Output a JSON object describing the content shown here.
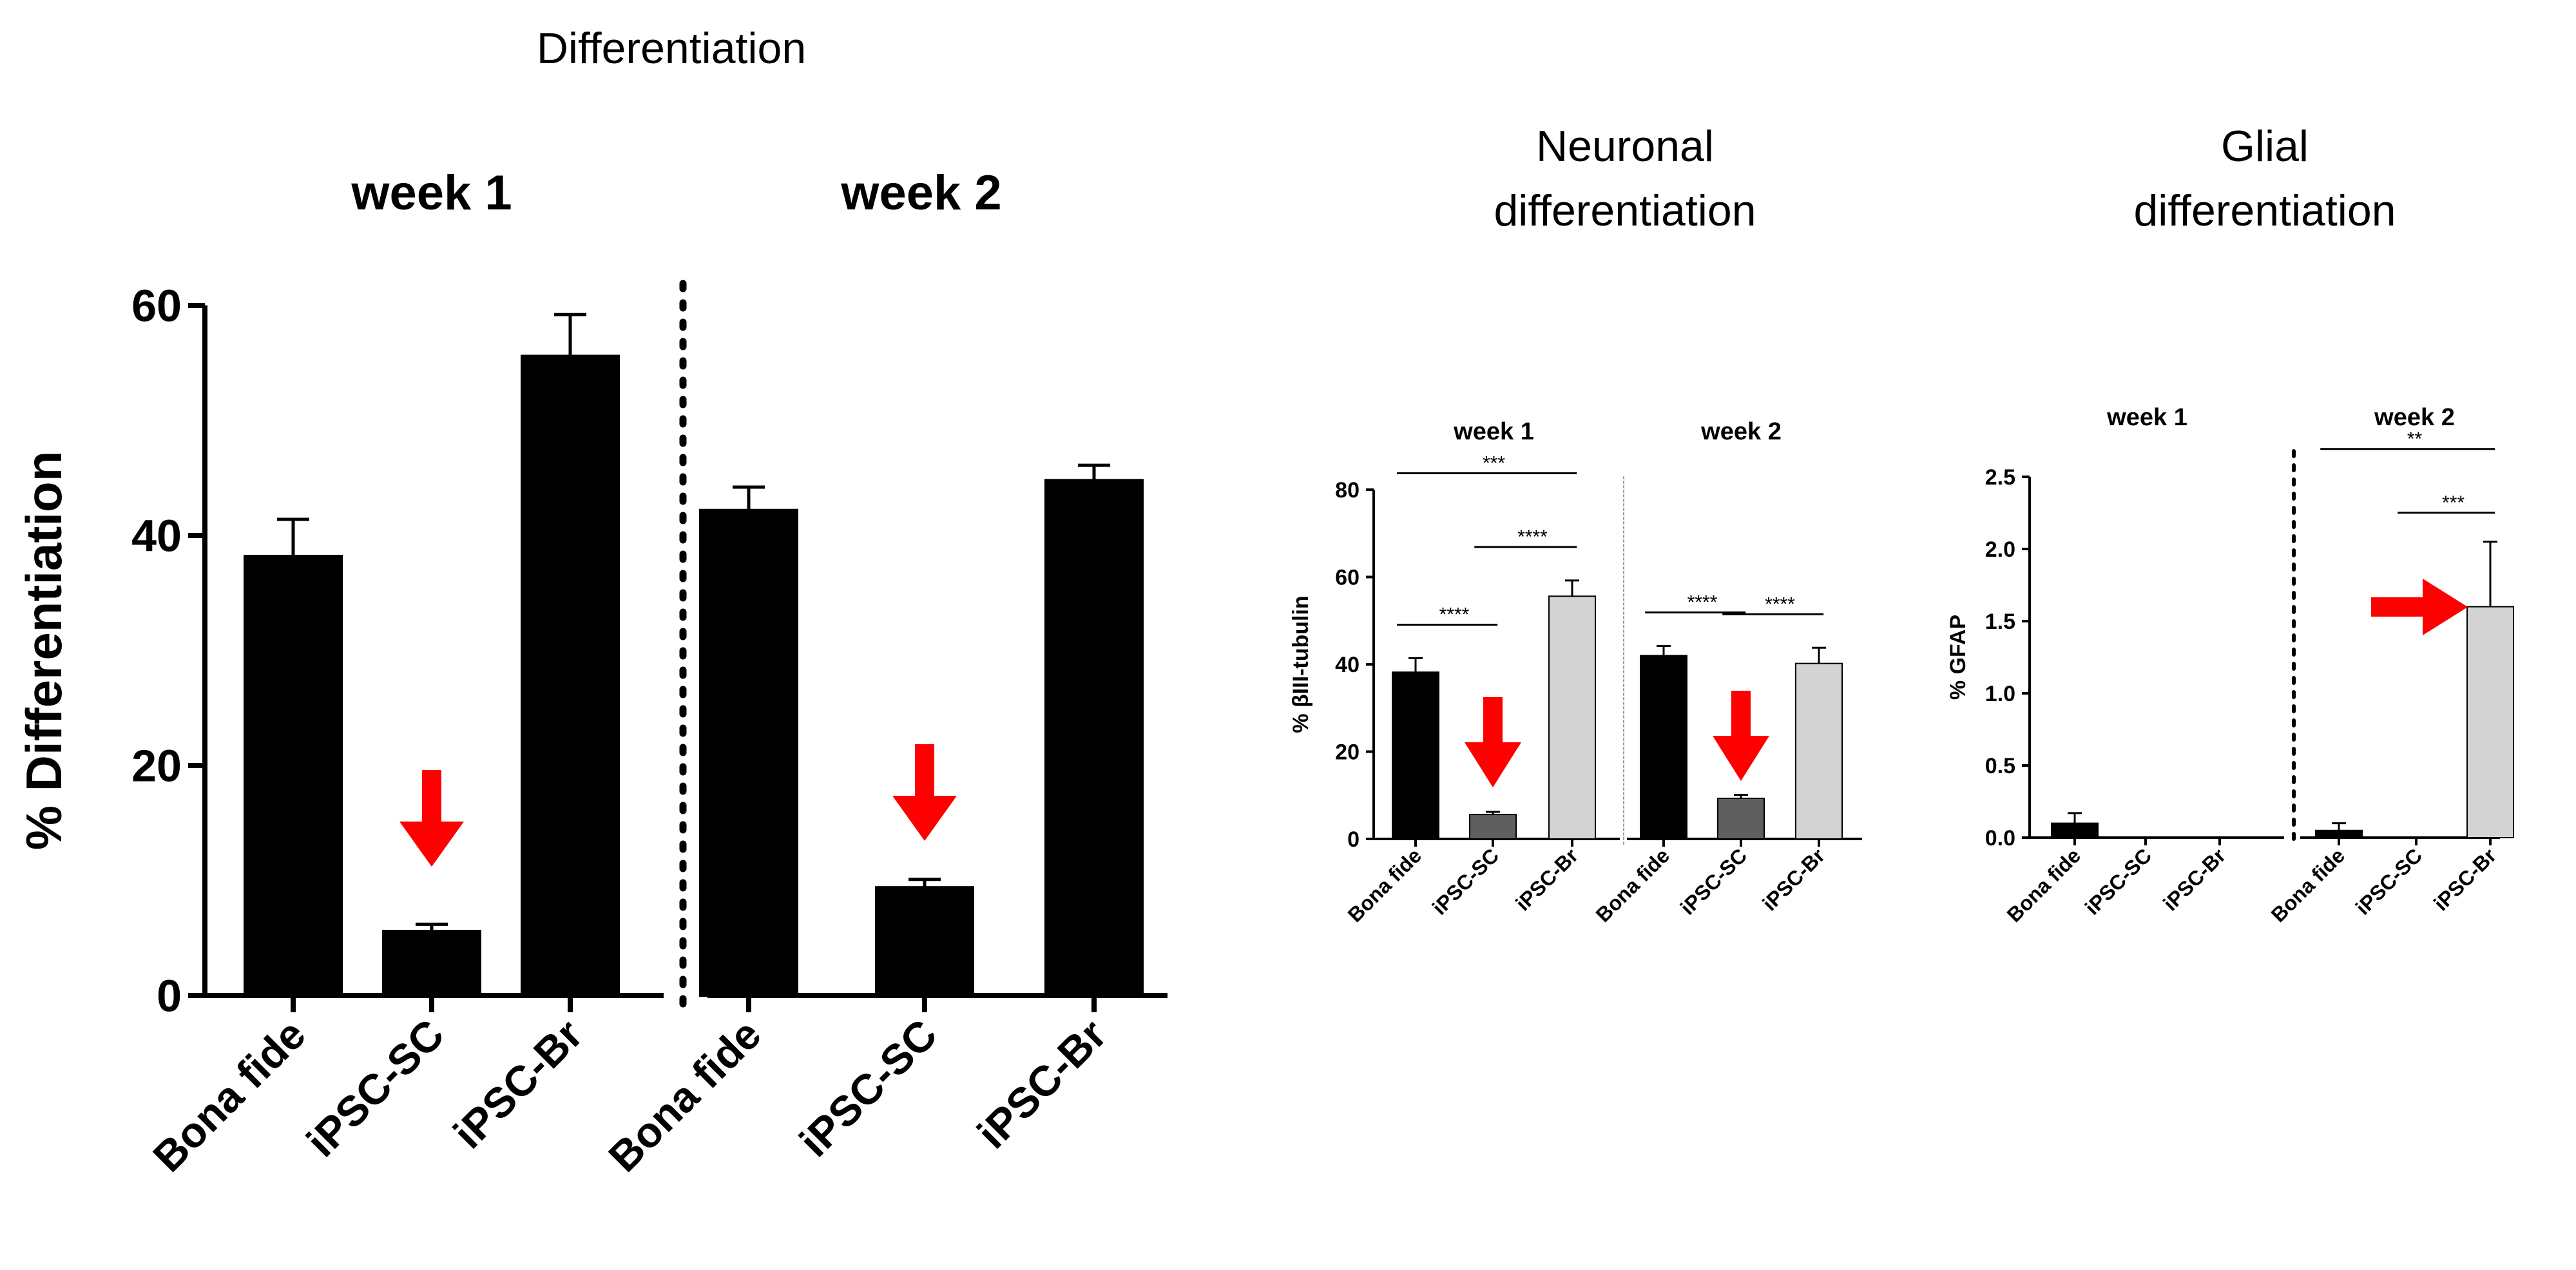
{
  "captions": {
    "main": "Differentiation",
    "neuronal_line1": "Neuronal",
    "neuronal_line2": "differentiation",
    "glial_line1": "Glial",
    "glial_line2": "differentiation"
  },
  "colors": {
    "black": "#000000",
    "dark_gray": "#5f5f5f",
    "light_gray": "#d3d3d3",
    "arrow_red": "#ff0000"
  },
  "chart_data": [
    {
      "type": "bar",
      "ylabel": "% Differentiation",
      "ylim": [
        0,
        60
      ],
      "yticks": [
        0,
        20,
        40,
        60
      ],
      "panels": [
        {
          "title": "week 1",
          "categories": [
            "Bona fide",
            "iPSC-SC",
            "iPSC-Br"
          ],
          "values": [
            38.2,
            5.6,
            55.6
          ],
          "errors": [
            3.2,
            0.6,
            3.6
          ]
        },
        {
          "title": "week 2",
          "categories": [
            "Bona fide",
            "iPSC-SC",
            "iPSC-Br"
          ],
          "values": [
            42.2,
            9.4,
            44.8
          ],
          "errors": [
            2.0,
            0.7,
            1.3
          ]
        }
      ],
      "annotations": [
        "red arrow pointing down at iPSC-SC week 1",
        "red arrow pointing down at iPSC-SC week 2"
      ]
    },
    {
      "type": "bar",
      "ylabel": "% βIII-tubulin",
      "ylim": [
        0,
        80
      ],
      "yticks": [
        0,
        20,
        40,
        60,
        80
      ],
      "panels": [
        {
          "title": "week 1",
          "categories": [
            "Bona fide",
            "iPSC-SC",
            "iPSC-Br"
          ],
          "values": [
            38.2,
            5.6,
            55.6
          ],
          "errors": [
            3.2,
            0.6,
            3.6
          ],
          "significance": [
            {
              "from": 0,
              "to": 1,
              "label": "****"
            },
            {
              "from": 1,
              "to": 2,
              "label": "****"
            },
            {
              "from": 0,
              "to": 2,
              "label": "***"
            }
          ]
        },
        {
          "title": "week 2",
          "categories": [
            "Bona fide",
            "iPSC-SC",
            "iPSC-Br"
          ],
          "values": [
            42.0,
            9.3,
            40.2
          ],
          "errors": [
            2.2,
            0.8,
            3.6
          ],
          "significance": [
            {
              "from": 0,
              "to": 1,
              "label": "****"
            },
            {
              "from": 1,
              "to": 2,
              "label": "****"
            }
          ]
        }
      ],
      "bar_colors": [
        "black",
        "dark_gray",
        "light_gray"
      ],
      "annotations": [
        "red arrow pointing down at iPSC-SC week 1",
        "red arrow pointing down at iPSC-SC week 2"
      ]
    },
    {
      "type": "bar",
      "ylabel": "% GFAP",
      "ylim": [
        0,
        2.5
      ],
      "yticks": [
        "0.0",
        "0.5",
        "1.0",
        "1.5",
        "2.0",
        "2.5"
      ],
      "panels": [
        {
          "title": "week 1",
          "categories": [
            "Bona fide",
            "iPSC-SC",
            "iPSC-Br"
          ],
          "values": [
            0.1,
            0.0,
            0.0
          ],
          "errors": [
            0.07,
            0,
            0
          ]
        },
        {
          "title": "week 2",
          "categories": [
            "Bona fide",
            "iPSC-SC",
            "iPSC-Br"
          ],
          "values": [
            0.05,
            0.0,
            1.6
          ],
          "errors": [
            0.05,
            0,
            0.45
          ],
          "significance": [
            {
              "from": 1,
              "to": 2,
              "label": "***"
            },
            {
              "from": 0,
              "to": 2,
              "label": "**"
            }
          ]
        }
      ],
      "bar_colors": [
        "black",
        "dark_gray",
        "light_gray"
      ],
      "annotations": [
        "red arrow pointing right at iPSC-Br week 2"
      ]
    }
  ]
}
